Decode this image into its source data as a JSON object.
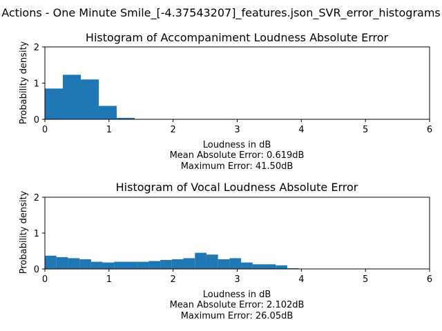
{
  "figure": {
    "suptitle": "Actions - One Minute Smile_[-4.37543207]_features.json_SVR_error_histograms"
  },
  "colors": {
    "bar": "#1f77b4",
    "axis": "#000000",
    "background": "#ffffff"
  },
  "chart_data": [
    {
      "type": "bar",
      "title": "Histogram of Accompaniment Loudness Absolute Error",
      "xlabel": "Loudness in dB",
      "ylabel": "Probability density",
      "xlim": [
        0,
        6
      ],
      "ylim": [
        0,
        2
      ],
      "xticks": [
        "0",
        "1",
        "2",
        "3",
        "4",
        "5",
        "6"
      ],
      "yticks": [
        "0",
        "1",
        "2"
      ],
      "bin_width": 0.28,
      "bin_starts": [
        0.0,
        0.28,
        0.56,
        0.84,
        1.12
      ],
      "values": [
        0.85,
        1.23,
        1.1,
        0.37,
        0.04
      ],
      "notes": [
        "Mean Absolute Error: 0.619dB",
        "Maximum Error: 41.50dB"
      ],
      "grid": false
    },
    {
      "type": "bar",
      "title": "Histogram of Vocal Loudness Absolute Error",
      "xlabel": "Loudness in dB",
      "ylabel": "Probability density",
      "xlim": [
        0,
        6
      ],
      "ylim": [
        0,
        2
      ],
      "xticks": [
        "0",
        "1",
        "2",
        "3",
        "4",
        "5",
        "6"
      ],
      "yticks": [
        "0",
        "1",
        "2"
      ],
      "bin_width": 0.18,
      "bin_starts": [
        0.0,
        0.18,
        0.36,
        0.54,
        0.72,
        0.9,
        1.08,
        1.26,
        1.44,
        1.62,
        1.8,
        1.98,
        2.16,
        2.34,
        2.52,
        2.7,
        2.88,
        3.06,
        3.24,
        3.42,
        3.6,
        3.78
      ],
      "values": [
        0.37,
        0.33,
        0.3,
        0.27,
        0.2,
        0.18,
        0.2,
        0.2,
        0.2,
        0.22,
        0.25,
        0.27,
        0.3,
        0.45,
        0.4,
        0.27,
        0.3,
        0.18,
        0.13,
        0.13,
        0.1,
        0.02
      ],
      "notes": [
        "Mean Absolute Error: 2.102dB",
        "Maximum Error: 26.05dB"
      ],
      "grid": false
    }
  ]
}
